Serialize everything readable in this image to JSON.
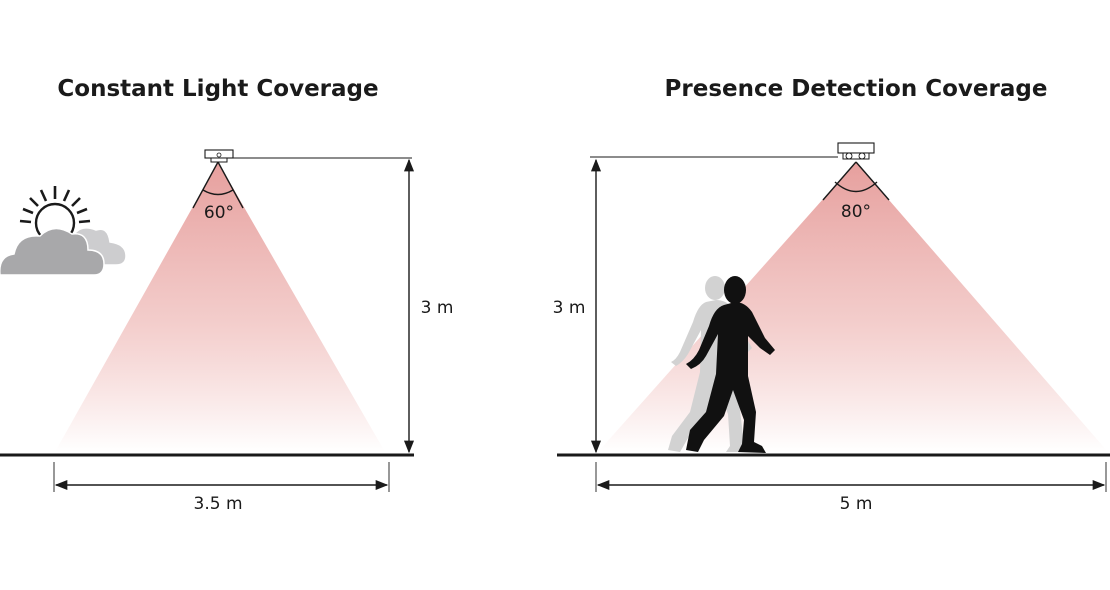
{
  "panels": [
    {
      "title": "Constant Light Coverage",
      "angle": "60°",
      "height": "3 m",
      "width": "3.5 m"
    },
    {
      "title": "Presence Detection Coverage",
      "angle": "80°",
      "height": "3 m",
      "width": "5 m"
    }
  ],
  "icons": {
    "weather": "sun-behind-clouds-icon",
    "sensor": "ceiling-sensor-icon",
    "person": "walking-person-icon"
  },
  "colors": {
    "cone_top": "#e59a98",
    "cone_bottom": "#ffffff",
    "line": "#1a1a1a",
    "cloud_dark": "#a8a8aa",
    "cloud_light": "#cdcdcf",
    "person": "#111111",
    "person_ghost": "#d2d2d2"
  }
}
